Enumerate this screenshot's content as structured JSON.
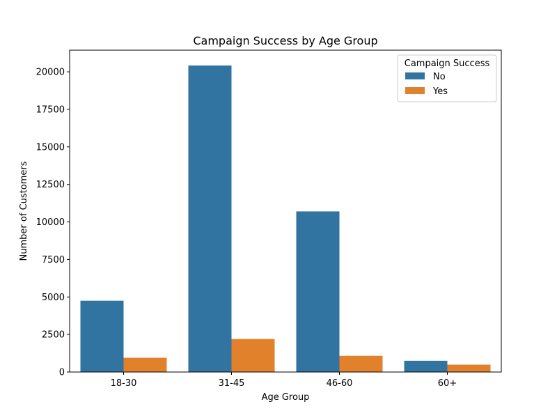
{
  "chart_data": {
    "type": "bar",
    "title": "Campaign Success by Age Group",
    "xlabel": "Age Group",
    "ylabel": "Number of Customers",
    "categories": [
      "18-30",
      "31-45",
      "46-60",
      "60+"
    ],
    "series": [
      {
        "name": "No",
        "color": "#3274a1",
        "values": [
          4750,
          20420,
          10700,
          750
        ]
      },
      {
        "name": "Yes",
        "color": "#e1812c",
        "values": [
          950,
          2200,
          1080,
          490
        ]
      }
    ],
    "ylim": [
      0,
      21442
    ],
    "yticks": [
      0,
      2500,
      5000,
      7500,
      10000,
      12500,
      15000,
      17500,
      20000
    ],
    "ytick_labels": [
      "0",
      "2500",
      "5000",
      "7500",
      "10000",
      "12500",
      "15000",
      "17500",
      "20000"
    ],
    "grid": false,
    "legend": {
      "title": "Campaign Success",
      "position": "top-right"
    }
  }
}
